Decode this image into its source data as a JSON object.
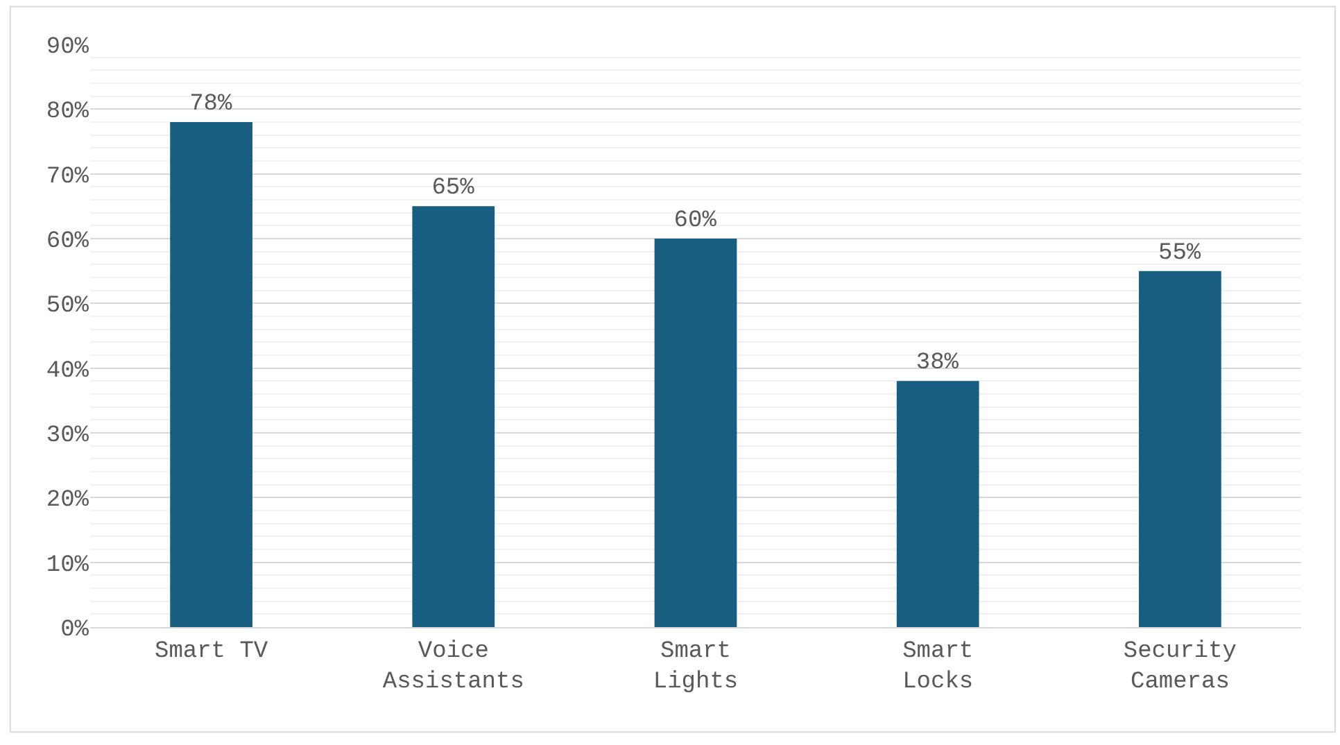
{
  "chart_data": {
    "type": "bar",
    "categories": [
      "Smart TV",
      "Voice\nAssistants",
      "Smart\nLights",
      "Smart\nLocks",
      "Security\nCameras"
    ],
    "values": [
      78,
      65,
      60,
      38,
      55
    ],
    "value_labels": [
      "78%",
      "65%",
      "60%",
      "38%",
      "55%"
    ],
    "color": "#175e80",
    "ylim": [
      0,
      90
    ],
    "yticks": [
      {
        "value": 0,
        "label": "0%"
      },
      {
        "value": 10,
        "label": "10%"
      },
      {
        "value": 20,
        "label": "20%"
      },
      {
        "value": 30,
        "label": "30%"
      },
      {
        "value": 40,
        "label": "40%"
      },
      {
        "value": 50,
        "label": "50%"
      },
      {
        "value": 60,
        "label": "60%"
      },
      {
        "value": 70,
        "label": "70%"
      },
      {
        "value": 80,
        "label": "80%"
      },
      {
        "value": 90,
        "label": "90%"
      }
    ],
    "grid": true
  }
}
